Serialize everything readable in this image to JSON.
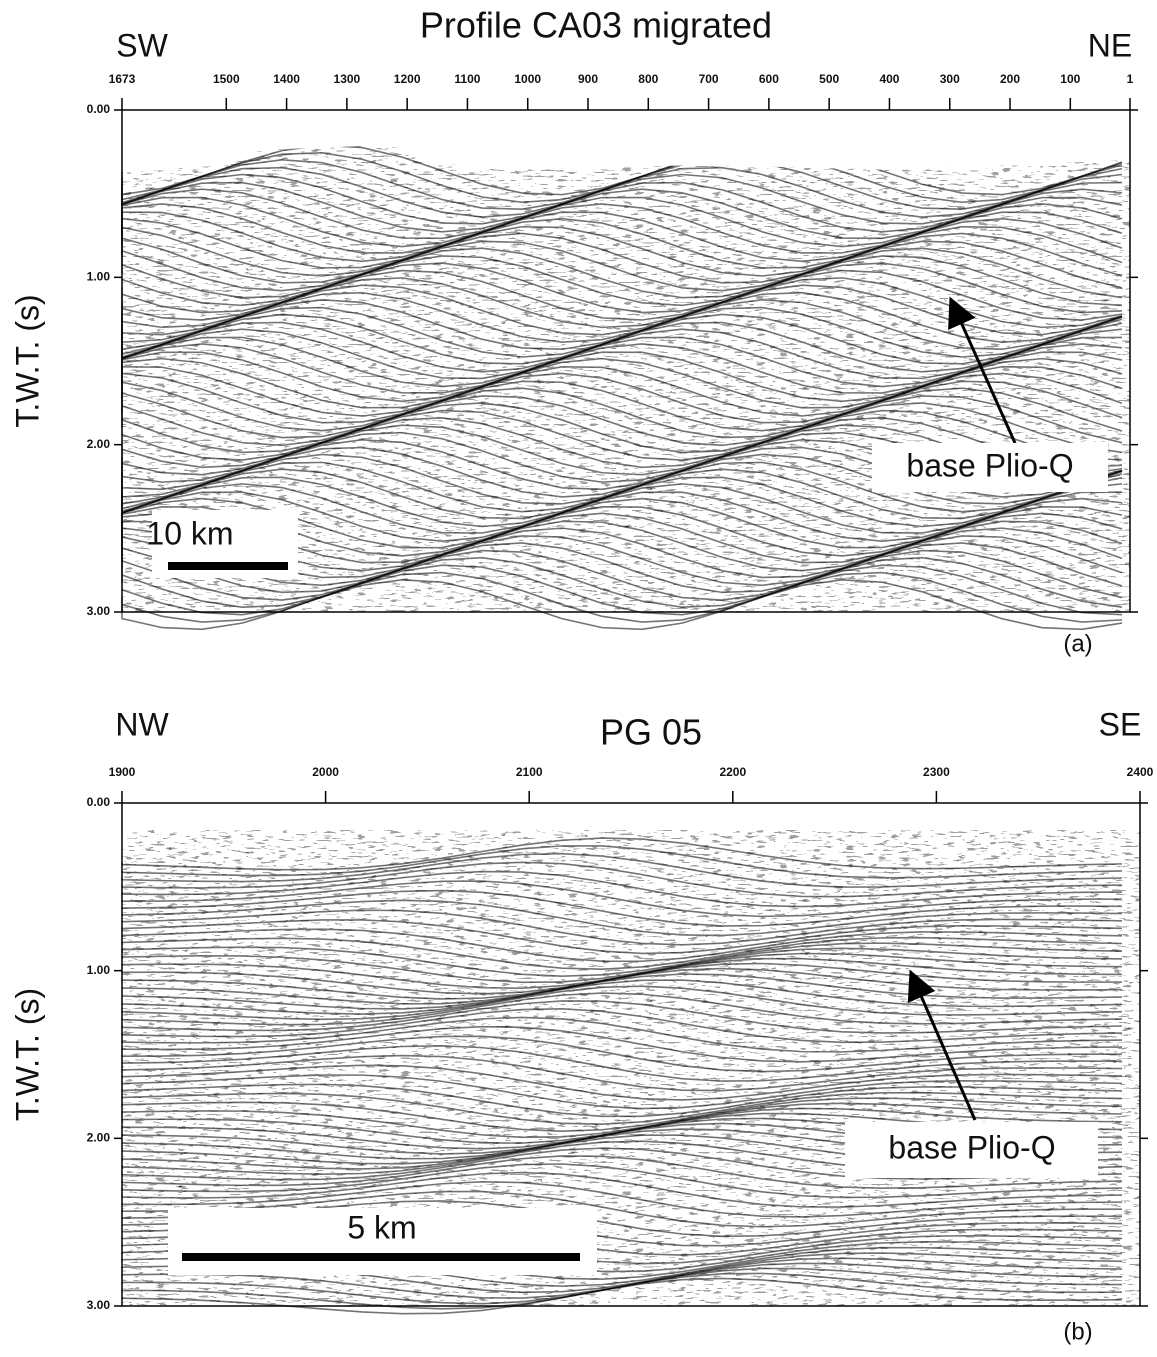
{
  "panels": [
    {
      "title": "Profile CA03 migrated",
      "left_dir": "SW",
      "right_dir": "NE",
      "xlim": [
        1673,
        1
      ],
      "xticks": [
        1673,
        1500,
        1400,
        1300,
        1200,
        1100,
        1000,
        900,
        800,
        700,
        600,
        500,
        400,
        300,
        200,
        100,
        1
      ],
      "ylim": [
        0,
        3
      ],
      "yticks": [
        {
          "value": 0,
          "label": "0.00"
        },
        {
          "value": 1,
          "label": "1.00"
        },
        {
          "value": 2,
          "label": "2.00"
        },
        {
          "value": 3,
          "label": "3.00"
        }
      ],
      "ylabel": "T.W.T. (s)",
      "scale_bar": "10 km",
      "annotation": "base Plio-Q",
      "panel_label": "(a)"
    },
    {
      "title": "PG 05",
      "left_dir": "NW",
      "right_dir": "SE",
      "xlim": [
        1900,
        2400
      ],
      "xticks": [
        1900,
        2000,
        2100,
        2200,
        2300,
        2400
      ],
      "ylim": [
        0,
        3
      ],
      "yticks": [
        {
          "value": 0,
          "label": "0.00"
        },
        {
          "value": 1,
          "label": "1.00"
        },
        {
          "value": 2,
          "label": "2.00"
        },
        {
          "value": 3,
          "label": "3.00"
        }
      ],
      "ylabel": "T.W.T. (s)",
      "scale_bar": "5 km",
      "annotation": "base Plio-Q",
      "panel_label": "(b)"
    }
  ]
}
